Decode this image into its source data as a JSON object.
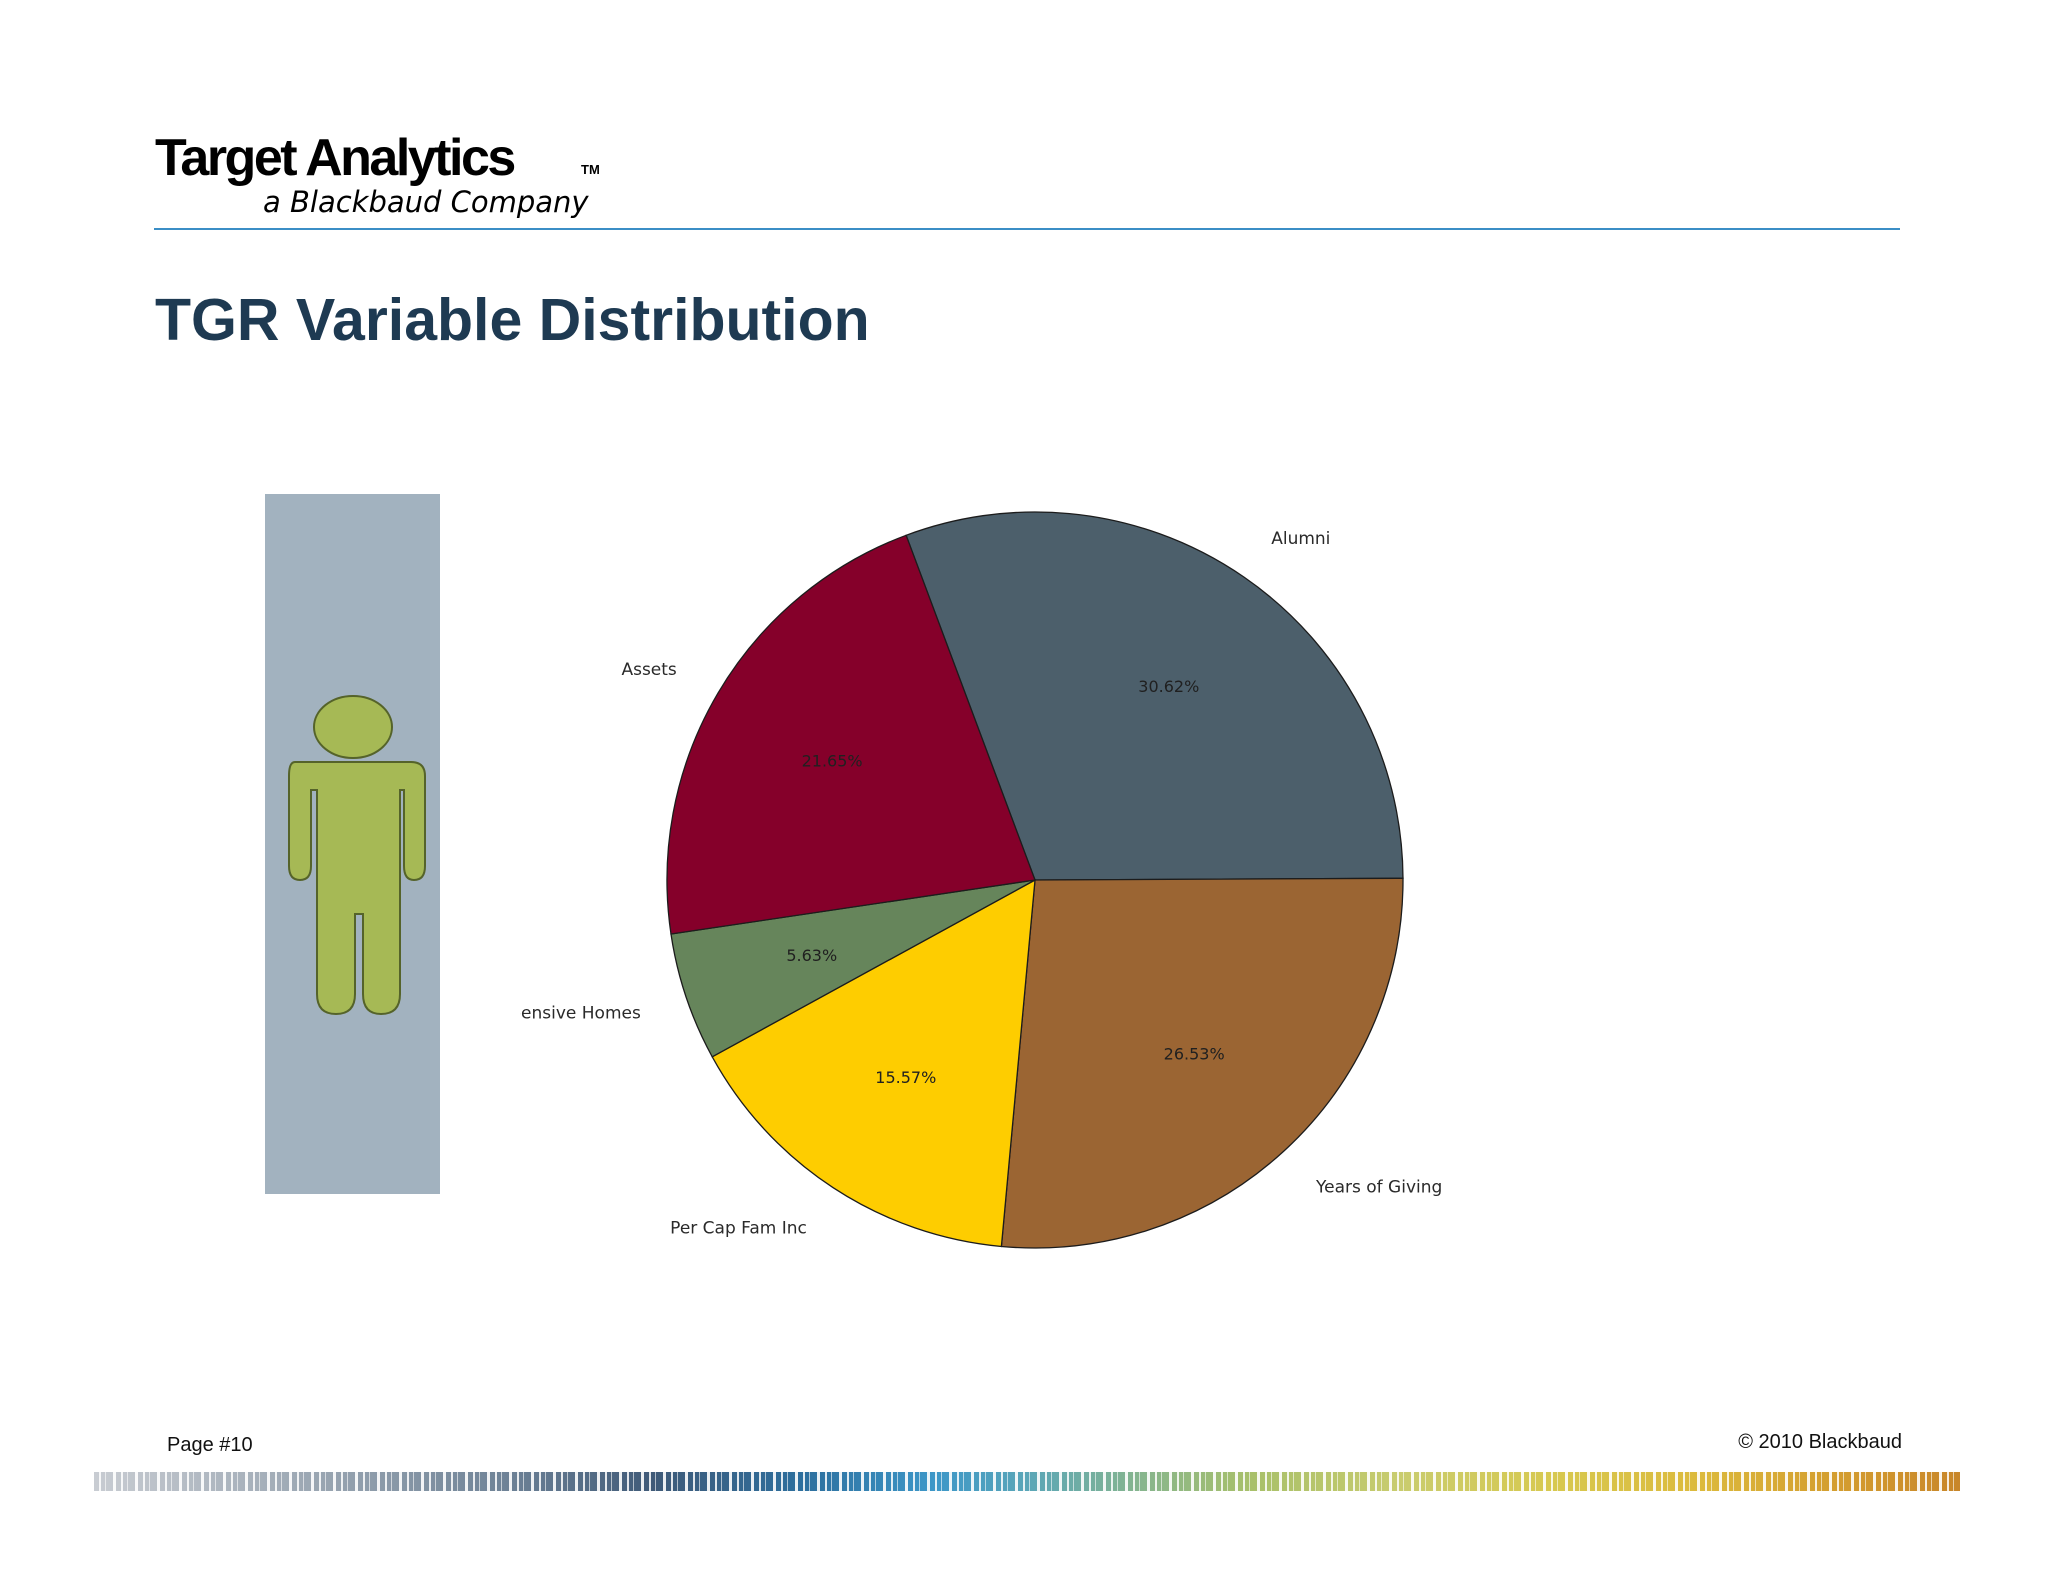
{
  "header": {
    "logo_main": "Target Analytics",
    "logo_tm": "TM",
    "logo_sub": "a Blackbaud Company",
    "rule_color": "#3b8ec6"
  },
  "page_title": "TGR Variable Distribution",
  "figure_icon": {
    "icon": "person-icon",
    "panel_color": "#a2b2bf",
    "figure_color": "#a6b955"
  },
  "chart_data": {
    "type": "pie",
    "title": "",
    "start_angle_deg": -20.5,
    "direction": "clockwise",
    "slices": [
      {
        "label": "Alumni",
        "value": 30.62,
        "value_label": "30.62%",
        "color": "#4c5f6b"
      },
      {
        "label": "Years of Giving",
        "value": 26.53,
        "value_label": "26.53%",
        "color": "#9b6533"
      },
      {
        "label": "Per Cap Fam Inc",
        "value": 15.57,
        "value_label": "15.57%",
        "color": "#fecd00"
      },
      {
        "label": "Expensive Homes",
        "value": 5.63,
        "value_label": "5.63%",
        "color": "#66855b"
      },
      {
        "label": "Assets",
        "value": 21.65,
        "value_label": "21.65%",
        "color": "#85002a"
      }
    ]
  },
  "footer": {
    "page": "Page #10",
    "copyright": "© 2010 Blackbaud"
  }
}
